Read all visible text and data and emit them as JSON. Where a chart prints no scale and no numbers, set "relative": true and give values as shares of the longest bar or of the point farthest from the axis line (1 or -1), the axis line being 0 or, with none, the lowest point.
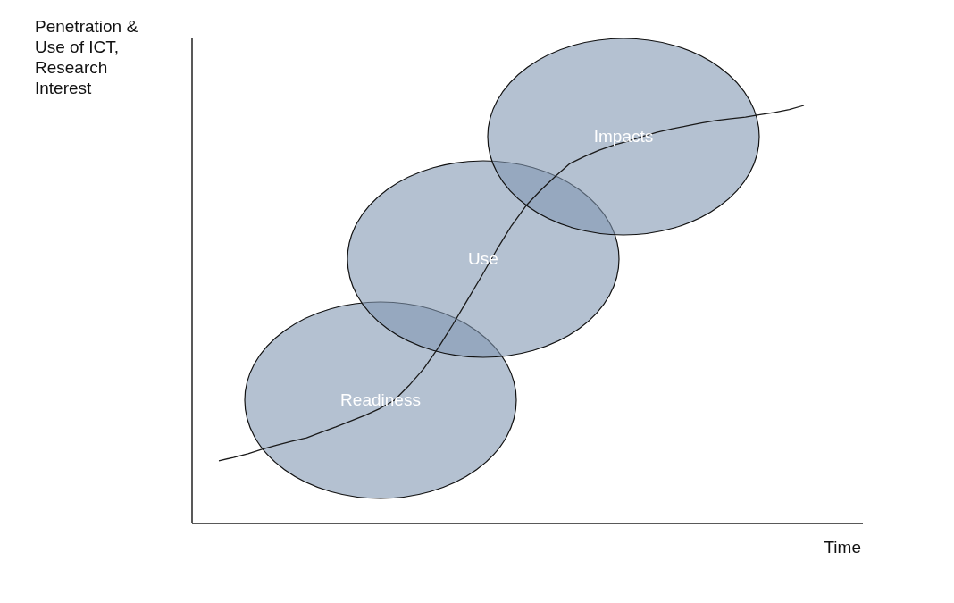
{
  "chart_data": {
    "type": "line",
    "relative": true,
    "ylabel": "Penetration & Use of ICT, Research Interest",
    "xlabel": "Time",
    "annotations": [
      "Readiness",
      "Use",
      "Impacts"
    ],
    "categories": [
      null,
      null,
      null,
      null,
      null,
      null,
      null,
      null,
      null,
      null,
      null,
      null,
      null,
      null,
      null,
      null,
      null,
      null,
      null,
      null,
      null,
      null,
      null,
      null,
      null,
      null,
      null,
      null,
      null,
      null,
      null,
      null,
      null,
      null,
      null,
      null,
      null,
      null,
      null,
      null,
      null
    ],
    "series": [
      {
        "color": "#1a1a1a",
        "values": [
          0.15,
          0.158,
          0.167,
          0.178,
          0.188,
          0.197,
          0.205,
          0.218,
          0.231,
          0.245,
          0.259,
          0.275,
          0.295,
          0.33,
          0.37,
          0.42,
          0.476,
          0.535,
          0.594,
          0.655,
          0.712,
          0.76,
          0.797,
          0.83,
          0.861,
          0.878,
          0.893,
          0.905,
          0.915,
          0.926,
          0.936,
          0.944,
          0.951,
          0.958,
          0.964,
          0.968,
          0.972,
          0.978,
          0.983,
          0.99,
          1
        ]
      }
    ]
  }
}
